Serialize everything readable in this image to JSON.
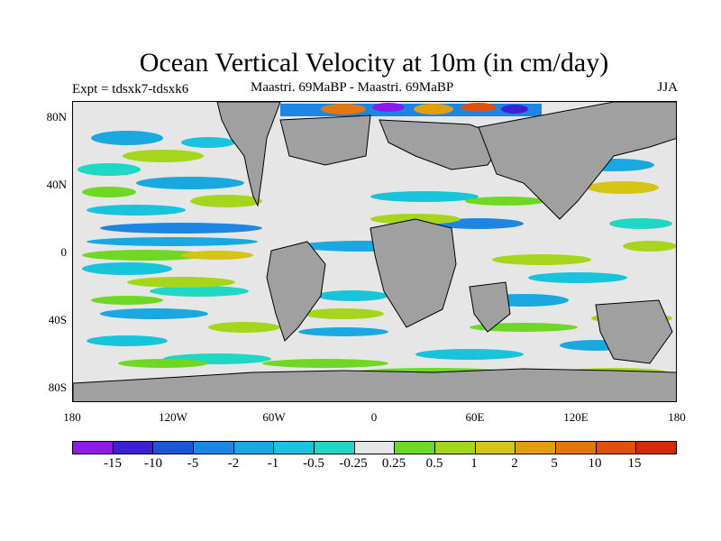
{
  "title": "Ocean Vertical Velocity at 10m (in cm/day)",
  "subtitle_left": "Expt = tdsxk7-tdsxk6",
  "subtitle_center": "Maastri.  69MaBP - Maastri.  69MaBP",
  "subtitle_right": "JJA",
  "lat_labels": [
    "80N",
    "40N",
    "0",
    "40S",
    "80S"
  ],
  "lon_labels": [
    "180",
    "120W",
    "60W",
    "0",
    "60E",
    "120E",
    "180"
  ],
  "colorbar": {
    "colors": [
      "#8a1be8",
      "#3d20d4",
      "#1e54d8",
      "#1e86e2",
      "#19a8e0",
      "#17c4dc",
      "#1ed8c4",
      "#e6e6e6",
      "#6ed824",
      "#a6d61c",
      "#d4c414",
      "#e0a00e",
      "#e2780c",
      "#e0500c",
      "#d22a08"
    ],
    "labels": [
      "-15",
      "-10",
      "-5",
      "-2",
      "-1",
      "-0.5",
      "-0.25",
      "0.25",
      "0.5",
      "1",
      "2",
      "5",
      "10",
      "15"
    ]
  },
  "colors": {
    "land": "#a0a0a0",
    "ocean_neutral": "#e6e6e6"
  }
}
